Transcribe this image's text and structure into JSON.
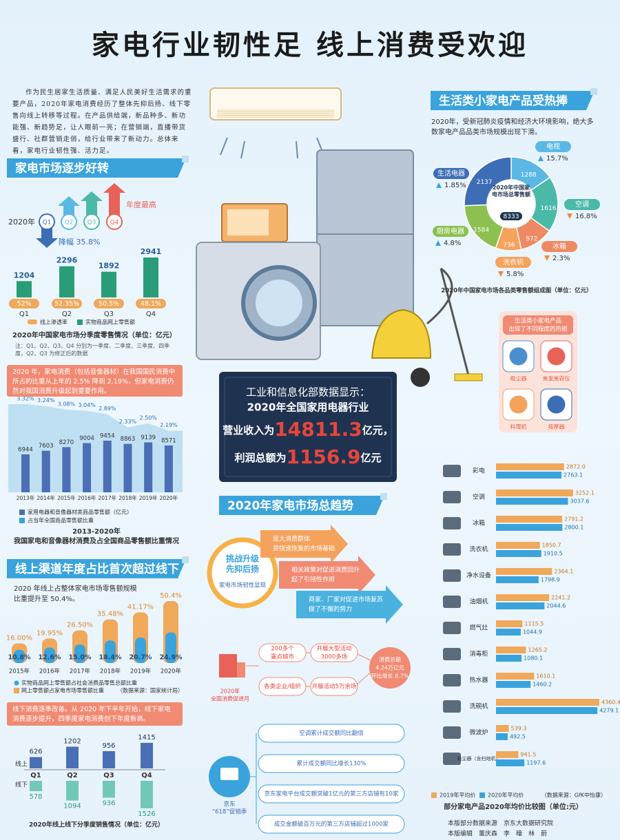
{
  "title": "家电行业韧性足 线上消费受欢迎",
  "intro": "作为民生居家生活质量、满足人民美好生活需求的重要产品，2020年家电消费经历了整体先抑后扬、线下零售向线上转移等过程。在产品供给端，新品种多、新功能强、新趋势足，让人眼前一亮；在营销端，直播带货盛行、社群营销走俏，给行业带来了新动力。总体来看，家电行业韧性强、活力足。",
  "sections": [
    "家电市场逐步好转",
    "线上渠道年度占比首次超过线下",
    "生活类小家电产品受热捧",
    "2020年家电市场总趋势"
  ],
  "quarter_arrows": {
    "year": "2020年",
    "drop": "降幅 35.8%",
    "high": "年度最高"
  },
  "boxes": {
    "share": "2020 年，家电消费（包括音像器材）在我国国民消费中所占的比重从上年的 2.5% 降到 2.19%，但家电消费仍然对我国消费升级起到重要作用。",
    "online": "2020 年线上占整体家电市场零售额规模比重提升至 50.4%。",
    "offline": "线下消费逐季改善。从 2020 年下半年开始，线下家电消费逐步提升，四季度家电消费创下年度新高。",
    "small": "2020年，受新冠肺炎疫情和经济大环境影响，绝大多数家电产品品类市场规模出现下滑。"
  },
  "miit": {
    "line1": "工业和信息化部数据显示：",
    "line2": "2020年全国家用电器行业",
    "revenue_label": "营业收入为",
    "revenue": "14811.3",
    "unit1": "亿元，",
    "profit_label": "利润总额为",
    "profit": "1156.9",
    "unit2": "亿元"
  },
  "hot": {
    "header": [
      "生活类小家电产品",
      "出现了不同程度的热销"
    ],
    "items": [
      "吸尘器",
      "美发美容仪",
      "料理机",
      "按摩器"
    ]
  },
  "trend": {
    "circle": [
      "挑战升级",
      "先抑后扬"
    ],
    "circle_sub": "家电市场韧性显现",
    "arrows": [
      [
        "庞大消费群体",
        "是快速恢复的市场基础"
      ],
      [
        "相关政策对促进消费回升",
        "起了引领性作用"
      ],
      [
        "商家、厂家对促进市场复苏",
        "做了不懈的努力"
      ]
    ]
  },
  "promo": {
    "label": [
      "2020年",
      "全国消费促进月"
    ],
    "pills": [
      [
        "200多个",
        "重点城市"
      ],
      [
        "开展大型活动",
        "3000多场"
      ],
      [
        "各类企业/组织"
      ],
      [
        "开展活动5万余场"
      ]
    ],
    "total": [
      "消费总额",
      "4.24万亿元",
      "环比增长 8.7%"
    ]
  },
  "jd618": {
    "label": [
      "京东",
      "“618”促销季"
    ],
    "items": [
      "空调累计成交额同比翻倍",
      "累计成交额同比增长130%",
      "京东家电平台成交额突破1亿元的第三方店铺有10家",
      "成交金额破百万元的第三方店铺超过1000家"
    ]
  },
  "footer": [
    "本版部分数据来源　京东大数据研究院",
    "本版编辑　董庆森　李　曈　林　蔚"
  ],
  "chart_data": [
    {
      "type": "bar",
      "title": "2020年中国家电市场分季度零售情况（单位：亿元）",
      "note": "注：Q1、Q2、Q3、Q4 分别为一季度、二季度、三季度、四季度，Q2、Q3 为修正后的数据",
      "categories": [
        "Q1",
        "Q2",
        "Q3",
        "Q4"
      ],
      "series": [
        {
          "name": "实物商品网上零售额",
          "color": "#2a9d78",
          "values": [
            1204,
            2296,
            1892,
            2941
          ]
        },
        {
          "name": "线上渗透率",
          "color": "#f0a85a",
          "values": [
            52,
            52.35,
            50.5,
            48.1
          ],
          "value_labels": [
            "52%",
            "52.35%",
            "50.5%",
            "48.1%"
          ]
        }
      ]
    },
    {
      "type": "bar",
      "title": "2013-2020年",
      "subtitle": "我国家电和音像器材消费及占全国商品零售额比重情况",
      "categories": [
        "2013年",
        "2014年",
        "2015年",
        "2016年",
        "2017年",
        "2018年",
        "2019年",
        "2020年"
      ],
      "series": [
        {
          "name": "家用电器和音像器材类商品零售额（亿元）",
          "color": "#4a6fb5",
          "values": [
            6944,
            7603,
            8270,
            9004,
            9454,
            8863,
            9139,
            8571
          ]
        },
        {
          "name": "占当年全国商品零售额比重",
          "color": "#bfe0f3",
          "values": [
            3.32,
            3.24,
            3.08,
            3.04,
            2.89,
            2.33,
            2.5,
            2.19
          ],
          "value_labels": [
            "3.32%",
            "3.24%",
            "3.08%",
            "3.04%",
            "2.89%",
            "2.33%",
            "2.50%",
            "2.19%"
          ]
        }
      ]
    },
    {
      "type": "bar",
      "source": "（数据来源：国家统计局）",
      "categories": [
        "2015年",
        "2016年",
        "2017年",
        "2018年",
        "2019年",
        "2020年"
      ],
      "series": [
        {
          "name": "实物商品网上零售额占社会消费品零售总额比重",
          "color": "#3aa3dc",
          "values": [
            10.8,
            12.6,
            15.0,
            18.4,
            20.7,
            24.9
          ],
          "value_labels": [
            "10.8%",
            "12.6%",
            "15.0%",
            "18.4%",
            "20.7%",
            "24.9%"
          ]
        },
        {
          "name": "网上零售额占家电市场零售额比重",
          "color": "#f0a85a",
          "values": [
            16.0,
            19.95,
            26.5,
            35.48,
            41.17,
            50.4
          ],
          "value_labels": [
            "16.00%",
            "19.95%",
            "26.50%",
            "35.48%",
            "41.17%",
            "50.4%"
          ]
        }
      ]
    },
    {
      "type": "bar",
      "title": "2020年线上线下分季度销售情况（单位：亿元）",
      "categories": [
        "Q1",
        "Q2",
        "Q3",
        "Q4"
      ],
      "series": [
        {
          "name": "线上",
          "color": "#4a6fb5",
          "values": [
            626,
            1202,
            956,
            1415
          ]
        },
        {
          "name": "线下",
          "color": "#72c8b6",
          "values": [
            578,
            1094,
            936,
            1526
          ]
        }
      ]
    },
    {
      "type": "pie",
      "title": "2020年中国家电市场各品类零售额组成图（单位：亿元）",
      "center_label": "2020年中国家电市场总零售额",
      "total": 8333,
      "categories": [
        "电视",
        "空调",
        "冰箱",
        "洗衣机",
        "厨房电器",
        "生活电器"
      ],
      "values": [
        1288,
        1616,
        972,
        736,
        1584,
        2137
      ],
      "colors": [
        "#5bb8e5",
        "#4bb9a8",
        "#ee8a63",
        "#f5a25d",
        "#8cc152",
        "#3d6db5"
      ],
      "changes": [
        "15.7%",
        "16.8%",
        "2.3%",
        "5.8%",
        "4.8%",
        "1.85%"
      ],
      "directions": [
        "up",
        "down",
        "down",
        "down",
        "up",
        "up"
      ]
    },
    {
      "type": "hbar",
      "title": "部分家电产品2020年均价比较图（单位:元）",
      "source": "（数据来源：GfK中怡康）",
      "categories": [
        "彩电",
        "空调",
        "冰箱",
        "洗衣机",
        "净水设备",
        "油烟机",
        "燃气灶",
        "消毒柜",
        "热水器",
        "洗碗机",
        "微波炉",
        "吸尘器（含扫地机）"
      ],
      "series": [
        {
          "name": "2019年平均价",
          "color": "#f0a85a",
          "values": [
            2872.0,
            3252.1,
            2791.2,
            1850.7,
            2364.1,
            2241.2,
            1115.5,
            1265.2,
            1610.1,
            4360.4,
            539.3,
            941.5
          ],
          "value_labels": [
            "2872.0",
            "3252.1",
            "2791.2",
            "1850.7",
            "2364.1",
            "2241.2",
            "1115.5",
            "1265.2",
            "1610.1",
            "4360.4",
            "539.3",
            "941.5"
          ]
        },
        {
          "name": "2020年平均价",
          "color": "#3aa3dc",
          "values": [
            2763.1,
            3037.6,
            2800.1,
            1910.5,
            1798.9,
            2044.6,
            1044.9,
            1080.1,
            1460.2,
            4279.1,
            492.5,
            1197.6
          ],
          "value_labels": [
            "2763.1",
            "3037.6",
            "2800.1",
            "1910.5",
            "1798.9",
            "2044.6",
            "1044.9",
            "1080.1",
            "1460.2",
            "4279.1",
            "492.5",
            "1197.6"
          ]
        }
      ]
    }
  ]
}
